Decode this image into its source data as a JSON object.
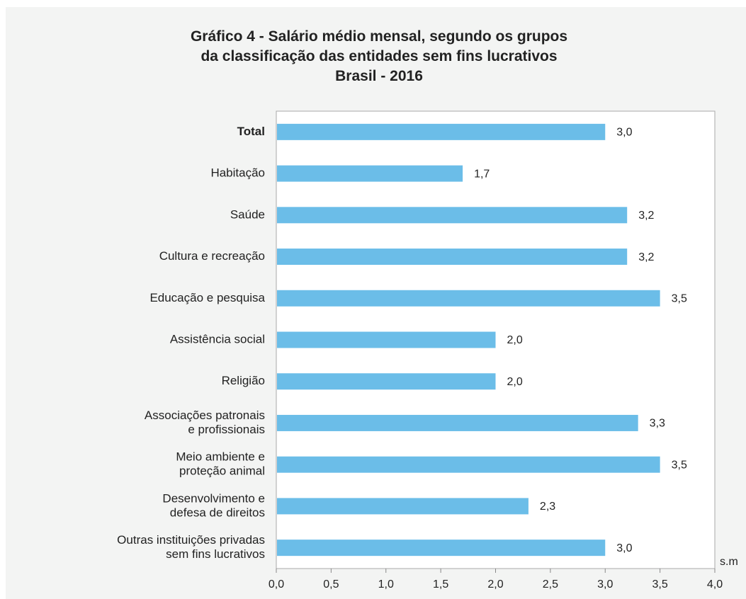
{
  "chart_data": {
    "type": "bar",
    "orientation": "horizontal",
    "title_lines": [
      "Gráfico 4 - Salário médio mensal, segundo os grupos",
      "da classificação das entidades sem fins lucrativos",
      "Brasil - 2016"
    ],
    "categories": [
      [
        "Total"
      ],
      [
        "Habitação"
      ],
      [
        "Saúde"
      ],
      [
        "Cultura e recreação"
      ],
      [
        "Educação e pesquisa"
      ],
      [
        "Assistência social"
      ],
      [
        "Religião"
      ],
      [
        "Associações patronais",
        "e profissionais"
      ],
      [
        "Meio ambiente e",
        "proteção animal"
      ],
      [
        "Desenvolvimento e",
        "defesa de direitos"
      ],
      [
        "Outras instituições privadas",
        "sem fins lucrativos"
      ]
    ],
    "bold_categories": [
      0
    ],
    "values": [
      3.0,
      1.7,
      3.2,
      3.2,
      3.5,
      2.0,
      2.0,
      3.3,
      3.5,
      2.3,
      3.0
    ],
    "value_labels": [
      "3,0",
      "1,7",
      "3,2",
      "3,2",
      "3,5",
      "2,0",
      "2,0",
      "3,3",
      "3,5",
      "2,3",
      "3,0"
    ],
    "xlim": [
      0,
      4
    ],
    "xticks": [
      "0,0",
      "0,5",
      "1,0",
      "1,5",
      "2,0",
      "2,5",
      "3,0",
      "3,5",
      "4,0"
    ],
    "unit_label": "s.m",
    "grid": false,
    "bar_color": "#6bbde8",
    "background_color": "#f3f4f3",
    "plot_background_color": "#ffffff"
  }
}
